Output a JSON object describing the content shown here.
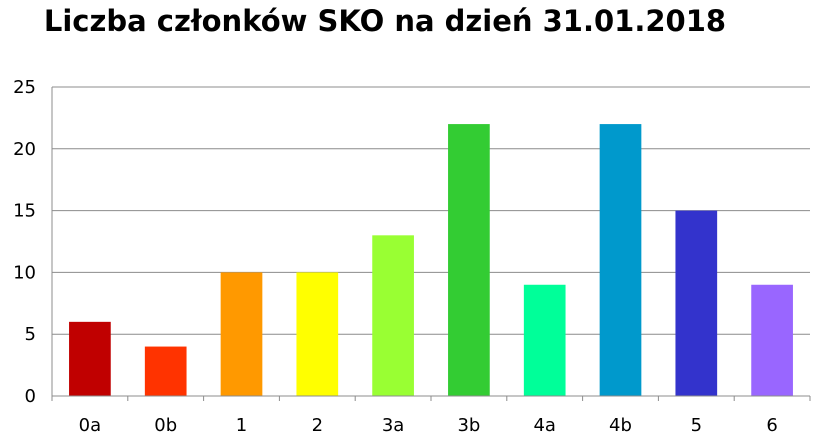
{
  "chart_data": {
    "type": "bar",
    "title": "Liczba członków SKO na dzień 31.01.2018",
    "xlabel": "",
    "ylabel": "",
    "categories": [
      "0a",
      "0b",
      "1",
      "2",
      "3a",
      "3b",
      "4a",
      "4b",
      "5",
      "6"
    ],
    "values": [
      6,
      4,
      10,
      10,
      13,
      22,
      9,
      22,
      15,
      9
    ],
    "colors": [
      "#c00000",
      "#ff3300",
      "#ff9900",
      "#ffff00",
      "#99ff33",
      "#33cc33",
      "#00ff99",
      "#0099cc",
      "#3333cc",
      "#9966ff"
    ],
    "ylim": [
      0,
      25
    ],
    "yticks": [
      0,
      5,
      10,
      15,
      20,
      25
    ],
    "grid": true,
    "legend": "none"
  }
}
